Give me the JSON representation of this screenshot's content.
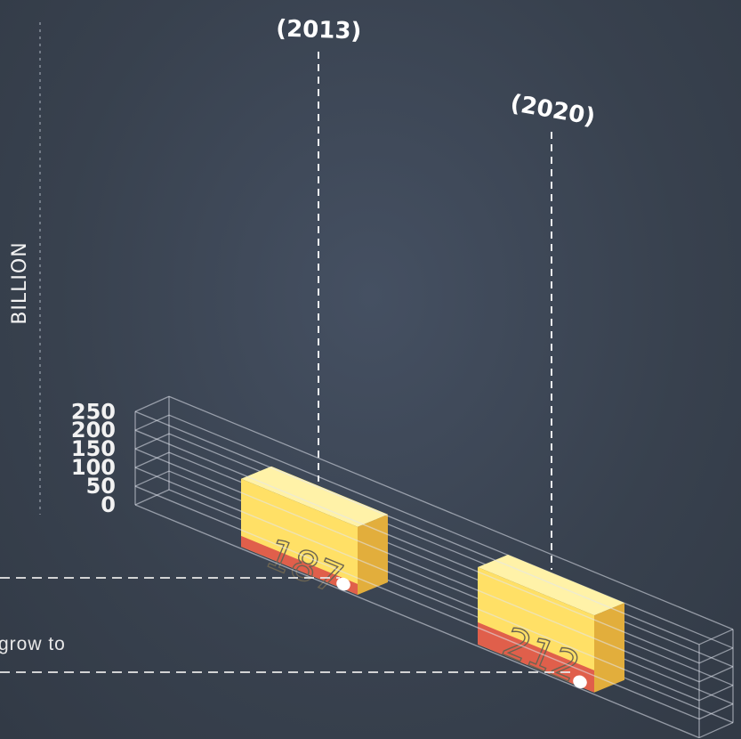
{
  "chart_data": {
    "type": "bar",
    "categories": [
      "(2013)",
      "(2020)"
    ],
    "values": [
      187,
      212
    ],
    "value_labels": [
      "187",
      "212"
    ],
    "title": "",
    "ylabel": "BILLION",
    "xlabel": "",
    "ylim": [
      0,
      250
    ],
    "yticks": [
      "0",
      "50",
      "100",
      "150",
      "200",
      "250"
    ],
    "grid": true,
    "style": "3d-isometric",
    "bar_color": "#ffe066",
    "bar_side_color": "#e2ae3c",
    "bar_top_color": "#fff2a8",
    "base_segment_color": "#e05f4b"
  },
  "annotation": {
    "text_fragment": "grow to"
  }
}
